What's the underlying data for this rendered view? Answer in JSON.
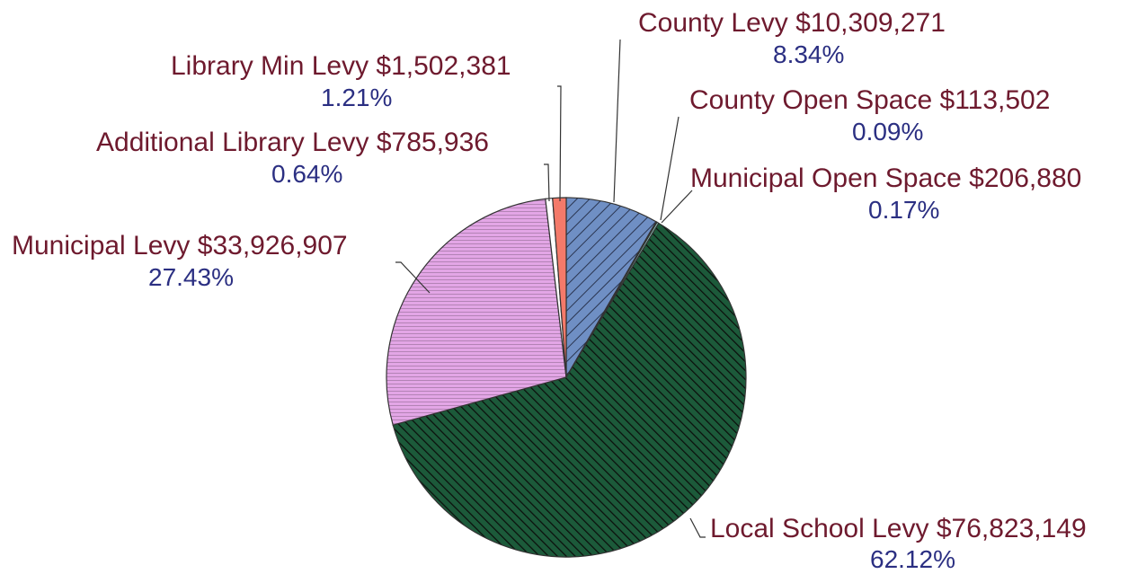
{
  "chart_data": {
    "type": "pie",
    "title": "",
    "start_angle_deg": 0,
    "direction": "clockwise",
    "slices": [
      {
        "label": "County Levy  $10,309,271",
        "value": 10309271,
        "percent_label": "8.34%",
        "color": "#6f8fc4",
        "pattern": "diagonal-back"
      },
      {
        "label": "County Open Space $113,502",
        "value": 113502,
        "percent_label": "0.09%",
        "color": "#d7d1ee",
        "pattern": "none"
      },
      {
        "label": "Municipal Open Space $206,880",
        "value": 206880,
        "percent_label": "0.17%",
        "color": "#9cdcd0",
        "pattern": "none"
      },
      {
        "label": "Local School Levy $76,823,149",
        "value": 76823149,
        "percent_label": "62.12%",
        "color": "#1c5a3a",
        "pattern": "diagonal-forward"
      },
      {
        "label": "Municipal Levy $33,926,907",
        "value": 33926907,
        "percent_label": "27.43%",
        "color": "#e3a6e6",
        "pattern": "horizontal"
      },
      {
        "label": "Additional Library Levy $785,936",
        "value": 785936,
        "percent_label": "0.64%",
        "color": "#ffffff",
        "pattern": "none"
      },
      {
        "label": "Library Min Levy $1,502,381",
        "value": 1502381,
        "percent_label": "1.21%",
        "color": "#f47a6a",
        "pattern": "none"
      }
    ]
  }
}
